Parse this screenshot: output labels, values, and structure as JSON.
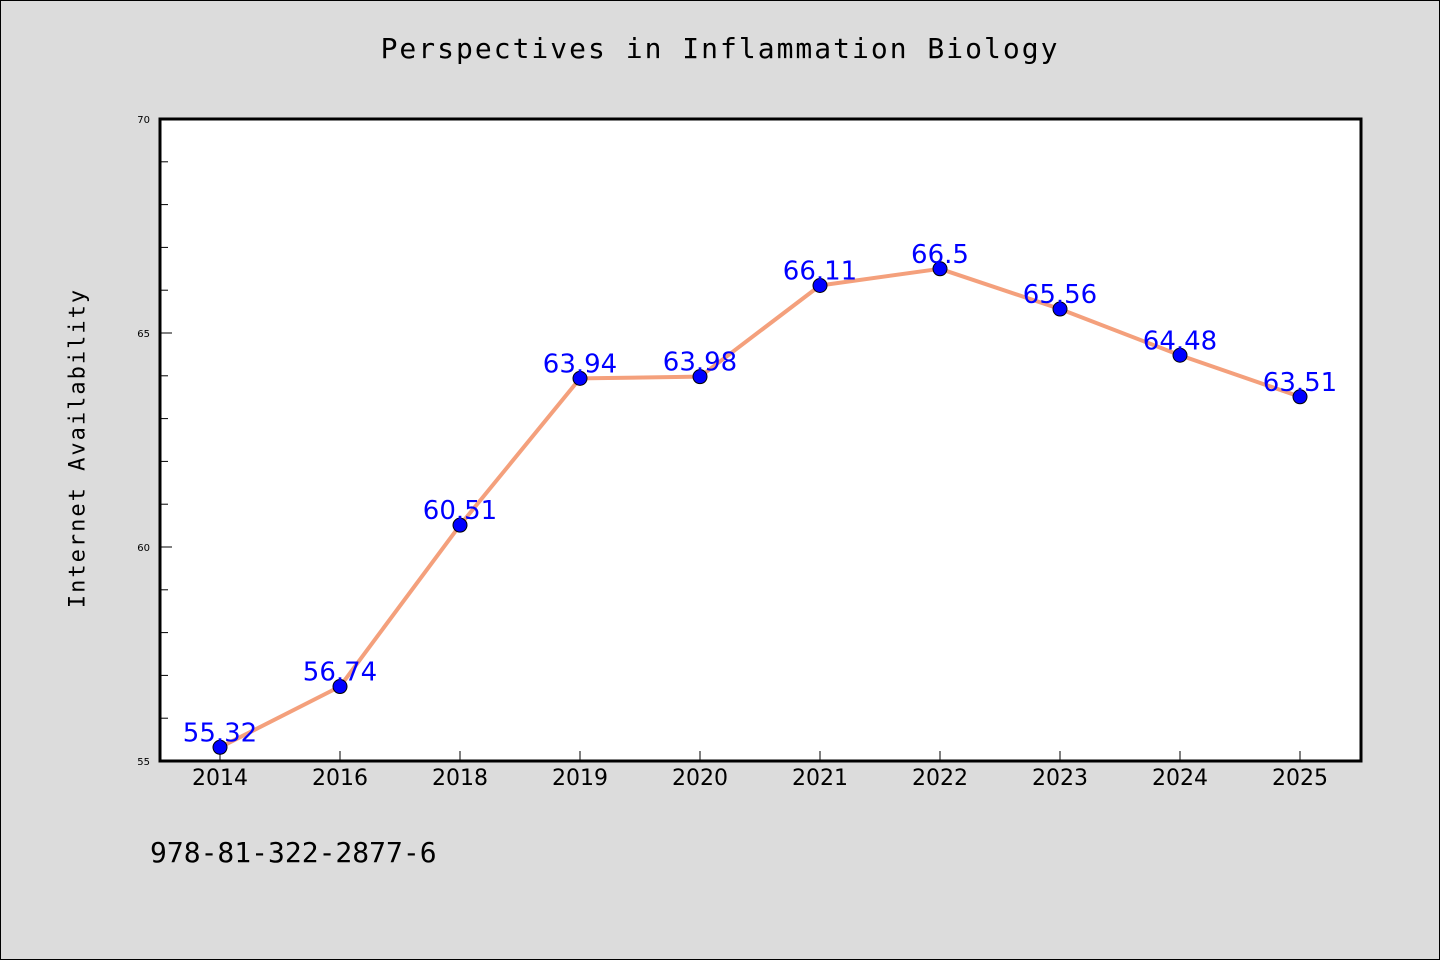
{
  "chart_data": {
    "type": "line",
    "title": "Perspectives in Inflammation Biology",
    "xlabel": "",
    "ylabel": "Internet Availability",
    "categories": [
      "2014",
      "2016",
      "2018",
      "2019",
      "2020",
      "2021",
      "2022",
      "2023",
      "2024",
      "2025"
    ],
    "values": [
      55.32,
      56.74,
      60.51,
      63.94,
      63.98,
      66.11,
      66.5,
      65.56,
      64.48,
      63.51
    ],
    "data_labels": [
      "55.32",
      "56.74",
      "60.51",
      "63.94",
      "63.98",
      "66.11",
      "66.5",
      "65.56",
      "64.48",
      "63.51"
    ],
    "ylim": [
      55,
      70
    ],
    "yticks": [
      "55",
      "60",
      "65",
      "70"
    ],
    "grid": false,
    "line_color": "#f4a07c",
    "marker_color": "#0000ff",
    "label_color": "#0000ff"
  },
  "footer": {
    "isbn": "978-81-322-2877-6"
  }
}
